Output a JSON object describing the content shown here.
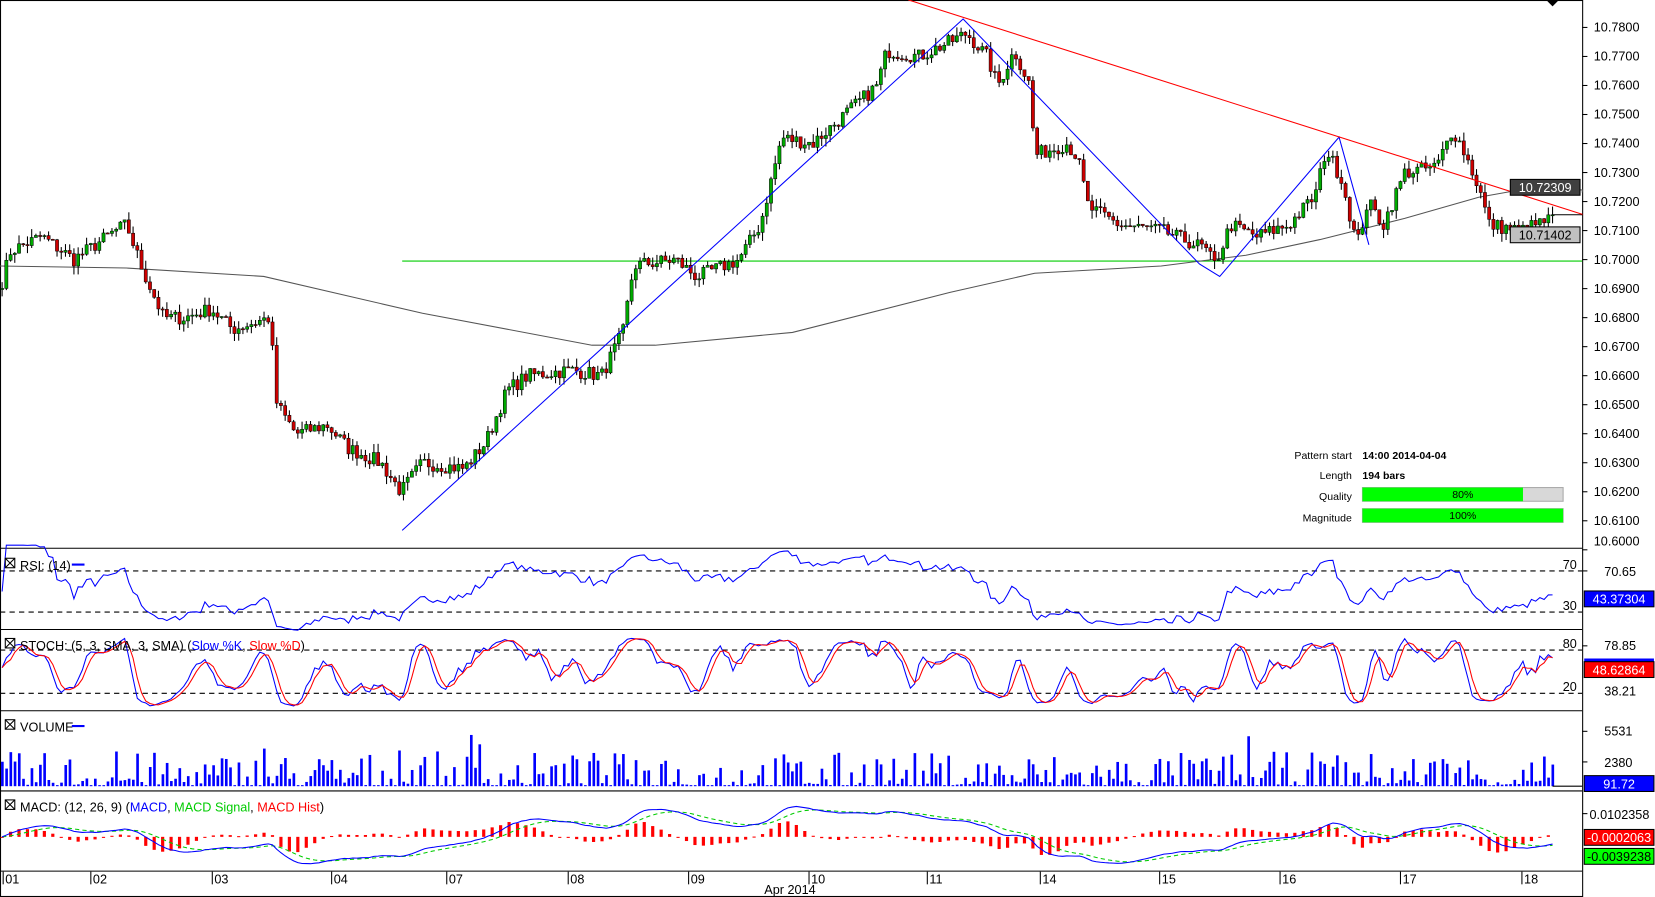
{
  "chart_data": {
    "type": "candlestick",
    "symbol_note": "",
    "x_unit": "trading day index (0 = 01 Apr 2014)",
    "x_tick_labels": [
      "01",
      "02",
      "03",
      "04",
      "07",
      "08",
      "09",
      "10",
      "11",
      "14",
      "15",
      "16",
      "17",
      "18"
    ],
    "x_month_label": "Apr 2014",
    "y_tick_labels": [
      "10.7800",
      "10.7700",
      "10.7600",
      "10.7500",
      "10.7400",
      "10.7300",
      "10.7200",
      "10.7100",
      "10.7000",
      "10.6900",
      "10.6800",
      "10.6700",
      "10.6600",
      "10.6500",
      "10.6400",
      "10.6300",
      "10.6200",
      "10.6100",
      "10.6000"
    ],
    "ylim": [
      10.6,
      10.7895
    ],
    "price_path": [
      [
        0,
        10.69
      ],
      [
        0.09,
        10.703
      ],
      [
        0.35,
        10.708
      ],
      [
        0.62,
        10.7
      ],
      [
        0.97,
        10.71
      ],
      [
        1.06,
        10.712
      ],
      [
        1.19,
        10.697
      ],
      [
        1.37,
        10.68
      ],
      [
        1.55,
        10.68
      ],
      [
        1.77,
        10.683
      ],
      [
        1.95,
        10.676
      ],
      [
        2.26,
        10.68
      ],
      [
        2.32,
        10.65
      ],
      [
        2.48,
        10.64
      ],
      [
        2.74,
        10.643
      ],
      [
        2.92,
        10.635
      ],
      [
        3.19,
        10.63
      ],
      [
        3.36,
        10.62
      ],
      [
        3.54,
        10.63
      ],
      [
        3.89,
        10.628
      ],
      [
        4.07,
        10.637
      ],
      [
        4.25,
        10.655
      ],
      [
        4.42,
        10.66
      ],
      [
        4.78,
        10.662
      ],
      [
        5.04,
        10.66
      ],
      [
        5.22,
        10.675
      ],
      [
        5.31,
        10.698
      ],
      [
        5.66,
        10.7
      ],
      [
        5.84,
        10.694
      ],
      [
        6.19,
        10.7
      ],
      [
        6.37,
        10.712
      ],
      [
        6.55,
        10.742
      ],
      [
        6.81,
        10.74
      ],
      [
        7.08,
        10.75
      ],
      [
        7.35,
        10.76
      ],
      [
        7.43,
        10.772
      ],
      [
        7.7,
        10.77
      ],
      [
        7.96,
        10.775
      ],
      [
        8.1,
        10.778
      ],
      [
        8.27,
        10.77
      ],
      [
        8.36,
        10.76
      ],
      [
        8.5,
        10.772
      ],
      [
        8.63,
        10.76
      ],
      [
        8.67,
        10.736
      ],
      [
        8.94,
        10.74
      ],
      [
        9.03,
        10.735
      ],
      [
        9.12,
        10.718
      ],
      [
        9.38,
        10.712
      ],
      [
        9.73,
        10.71
      ],
      [
        10.09,
        10.704
      ],
      [
        10.18,
        10.698
      ],
      [
        10.31,
        10.712
      ],
      [
        10.53,
        10.708
      ],
      [
        10.8,
        10.712
      ],
      [
        11.02,
        10.722
      ],
      [
        11.11,
        10.738
      ],
      [
        11.24,
        10.728
      ],
      [
        11.37,
        10.705
      ],
      [
        11.46,
        10.72
      ],
      [
        11.59,
        10.712
      ],
      [
        11.77,
        10.73
      ],
      [
        12.04,
        10.732
      ],
      [
        12.17,
        10.745
      ],
      [
        12.26,
        10.738
      ],
      [
        12.39,
        10.725
      ],
      [
        12.48,
        10.712
      ],
      [
        12.74,
        10.71
      ],
      [
        13.0,
        10.714
      ]
    ],
    "overlays": {
      "resistance_line": {
        "color": "#ff0000",
        "points": [
          [
            7.61,
            10.7895
          ],
          [
            13.26,
            10.7156
          ]
        ]
      },
      "support_line": {
        "color": "#00cc00",
        "price": 10.6995,
        "from": 3.37
      },
      "pattern_zigzag": {
        "color": "#0000ff",
        "points": [
          [
            3.37,
            10.6067
          ],
          [
            8.07,
            10.7829
          ],
          [
            10.05,
            10.6985
          ],
          [
            10.22,
            10.6942
          ],
          [
            11.22,
            10.7422
          ],
          [
            11.47,
            10.7051
          ]
        ]
      },
      "moving_average": {
        "color": "#555555",
        "points": [
          [
            0,
            10.6978
          ],
          [
            1.06,
            10.6971
          ],
          [
            2.21,
            10.6942
          ],
          [
            3.54,
            10.6815
          ],
          [
            4.96,
            10.6705
          ],
          [
            5.49,
            10.6705
          ],
          [
            6.64,
            10.6749
          ],
          [
            7.96,
            10.6887
          ],
          [
            8.67,
            10.6953
          ],
          [
            9.73,
            10.6978
          ],
          [
            10.44,
            10.7015
          ],
          [
            11.06,
            10.7069
          ],
          [
            11.77,
            10.7142
          ],
          [
            12.39,
            10.7215
          ],
          [
            12.83,
            10.7247
          ],
          [
            13.26,
            10.724
          ]
        ]
      }
    },
    "last_price_labels": [
      {
        "value": "10.72309",
        "bg": "#404040"
      },
      {
        "value": "10.71402",
        "bg": "#c0c0c0"
      }
    ],
    "rsi": {
      "title": "RSI: (14)",
      "levels": [
        "70",
        "30"
      ],
      "axis_label": "70.65",
      "last": "43.37304",
      "color": "#0000ff"
    },
    "stoch": {
      "title": "STOCH: (5, 3, SMA, 3, SMA)",
      "k_label": "Slow %K",
      "d_label": "Slow %D",
      "levels": [
        "80",
        "20"
      ],
      "axis_labels": [
        "78.85",
        "38.21"
      ],
      "last": "48.62864",
      "k_color": "#0000ff",
      "d_color": "#ff0000"
    },
    "volume": {
      "title": "VOLUME",
      "axis_labels": [
        "5531",
        "2380"
      ],
      "last": "91.72"
    },
    "macd": {
      "title": "MACD: (12, 26, 9)",
      "macd_label": "MACD",
      "signal_label": "MACD Signal",
      "hist_label": "MACD Hist",
      "axis_label": "0.0102358",
      "last_hist": "-0.0002063",
      "last_signal": "-0.0039238"
    }
  },
  "pattern_info": {
    "start_label": "Pattern start",
    "start_value": "14:00 2014-04-04",
    "length_label": "Length",
    "length_value": "194 bars",
    "quality_label": "Quality",
    "quality_value": "80%",
    "quality_pct": 80,
    "magnitude_label": "Magnitude",
    "magnitude_value": "100%",
    "magnitude_pct": 100
  },
  "colors": {
    "up": "#00aa00",
    "down": "#cc0000",
    "bar_fill": "#00ff00"
  }
}
